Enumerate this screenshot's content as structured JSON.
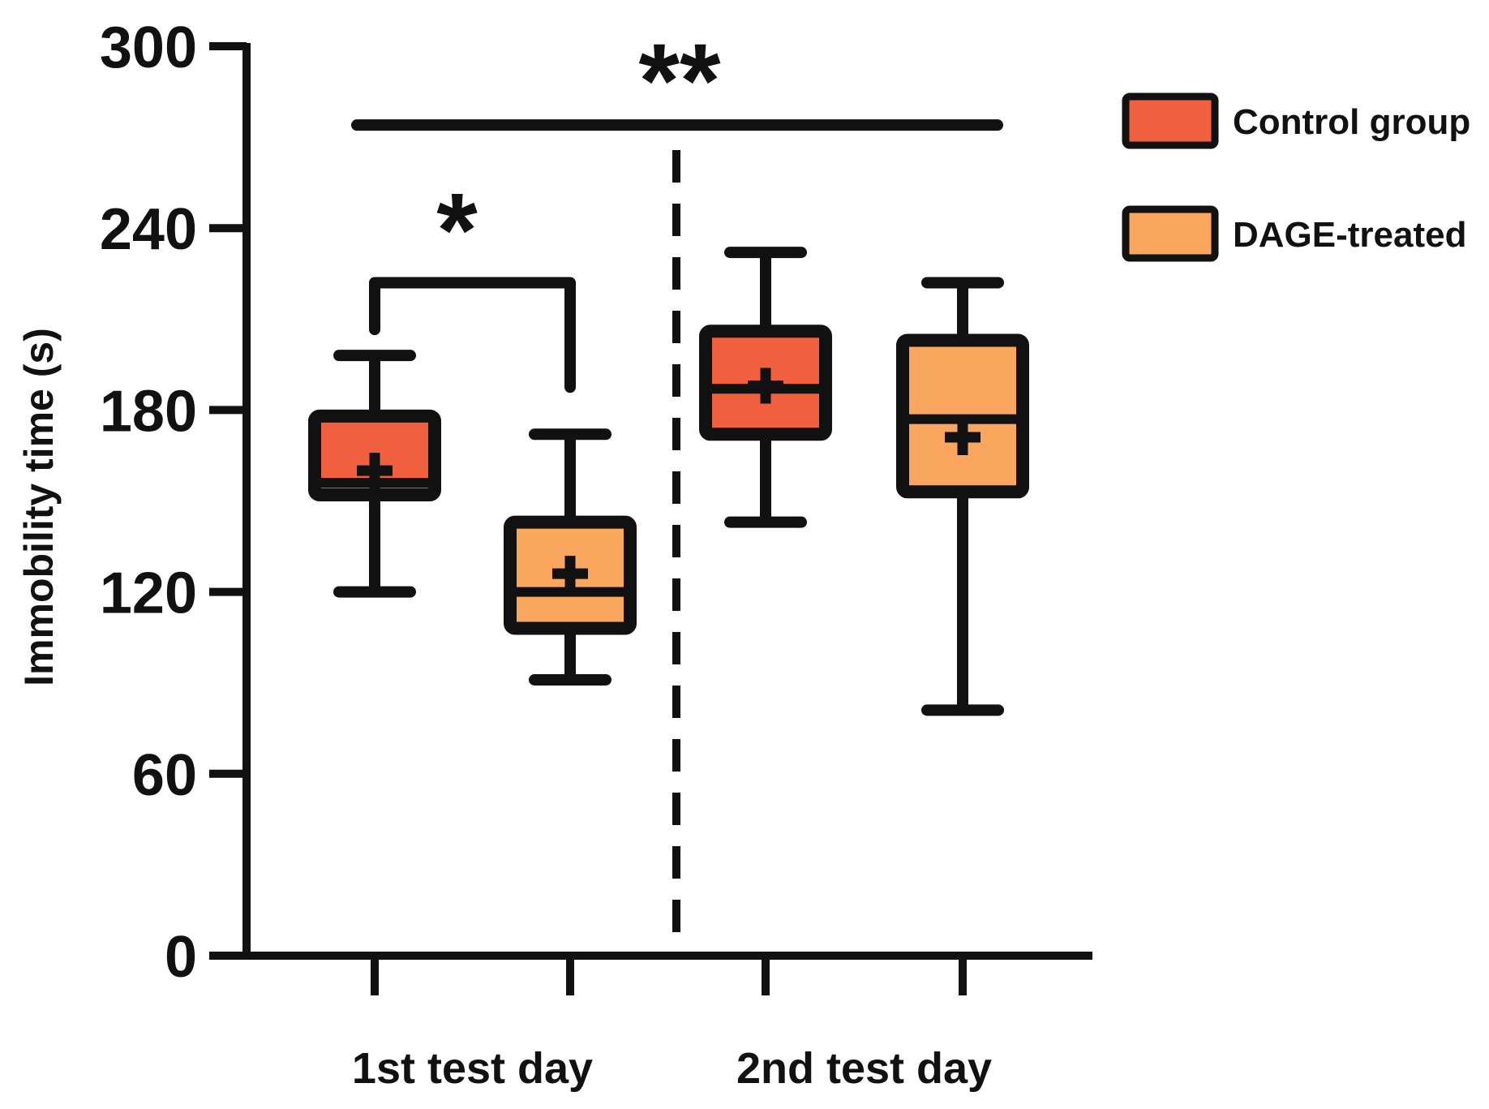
{
  "chart_data": {
    "type": "box",
    "title": "",
    "xlabel": "",
    "ylabel": "Immobility time (s)",
    "ylim": [
      0,
      300
    ],
    "yticks": [
      0,
      60,
      120,
      180,
      240,
      300
    ],
    "groups": [
      "1st test day",
      "2nd test day"
    ],
    "series": [
      {
        "name": "Control group",
        "color": "#F0603F"
      },
      {
        "name": "DAGE-treated",
        "color": "#FBA65E"
      }
    ],
    "boxes": [
      {
        "group": "1st test day",
        "series": "Control group",
        "min": 120,
        "q1": 152,
        "median": 156,
        "q3": 178,
        "max": 198,
        "mean": 160
      },
      {
        "group": "1st test day",
        "series": "DAGE-treated",
        "min": 91,
        "q1": 108,
        "median": 120,
        "q3": 143,
        "max": 172,
        "mean": 126
      },
      {
        "group": "2nd test day",
        "series": "Control group",
        "min": 143,
        "q1": 172,
        "median": 187,
        "q3": 206,
        "max": 232,
        "mean": 188
      },
      {
        "group": "2nd test day",
        "series": "DAGE-treated",
        "min": 81,
        "q1": 153,
        "median": 177,
        "q3": 203,
        "max": 222,
        "mean": 171
      }
    ],
    "annotations": [
      {
        "label": "*",
        "type": "bracket",
        "from": 0,
        "to": 1,
        "y": 222
      },
      {
        "label": "**",
        "type": "line",
        "from": 0,
        "to": 3,
        "y": 274
      }
    ]
  }
}
